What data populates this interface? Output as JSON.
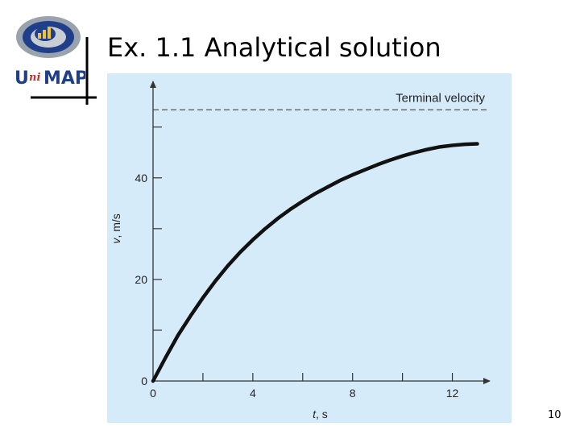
{
  "slide": {
    "title": "Ex. 1.1 Analytical solution",
    "page_number": "10"
  },
  "logo": {
    "text_u": "U",
    "text_ni": "ni",
    "text_map": "MAP"
  },
  "colors": {
    "panel_bg": "#d6ebf9",
    "curve": "#111111",
    "logo_blue": "#1f3f8a",
    "logo_gray": "#9aa3ad"
  },
  "chart_data": {
    "type": "line",
    "title": "",
    "xlabel": "t, s",
    "ylabel": "v, m/s",
    "xlim": [
      0,
      13.5
    ],
    "ylim": [
      0,
      59
    ],
    "x_ticks": [
      0,
      2,
      4,
      6,
      8,
      10,
      12
    ],
    "x_tick_labels": [
      "0",
      "",
      "4",
      "",
      "8",
      "",
      "12"
    ],
    "y_ticks": [
      0,
      10,
      20,
      30,
      40,
      50
    ],
    "y_tick_labels": [
      "0",
      "",
      "20",
      "",
      "40",
      ""
    ],
    "grid": false,
    "series": [
      {
        "x": [
          0,
          0.5,
          1,
          1.5,
          2,
          2.5,
          3,
          3.5,
          4,
          4.5,
          5,
          5.5,
          6,
          6.5,
          7,
          7.5,
          8,
          8.5,
          9,
          9.5,
          10,
          10.5,
          11,
          11.5,
          12,
          12.5,
          13
        ],
        "y": [
          0,
          4.6,
          9.0,
          12.8,
          16.4,
          19.7,
          22.7,
          25.4,
          27.8,
          30.0,
          32.0,
          33.8,
          35.4,
          36.9,
          38.2,
          39.5,
          40.6,
          41.6,
          42.6,
          43.5,
          44.3,
          45.0,
          45.6,
          46.1,
          46.4,
          46.6,
          46.7
        ]
      }
    ],
    "reference_line": {
      "label": "Terminal velocity",
      "y": 53.4,
      "style": "dashed"
    }
  }
}
